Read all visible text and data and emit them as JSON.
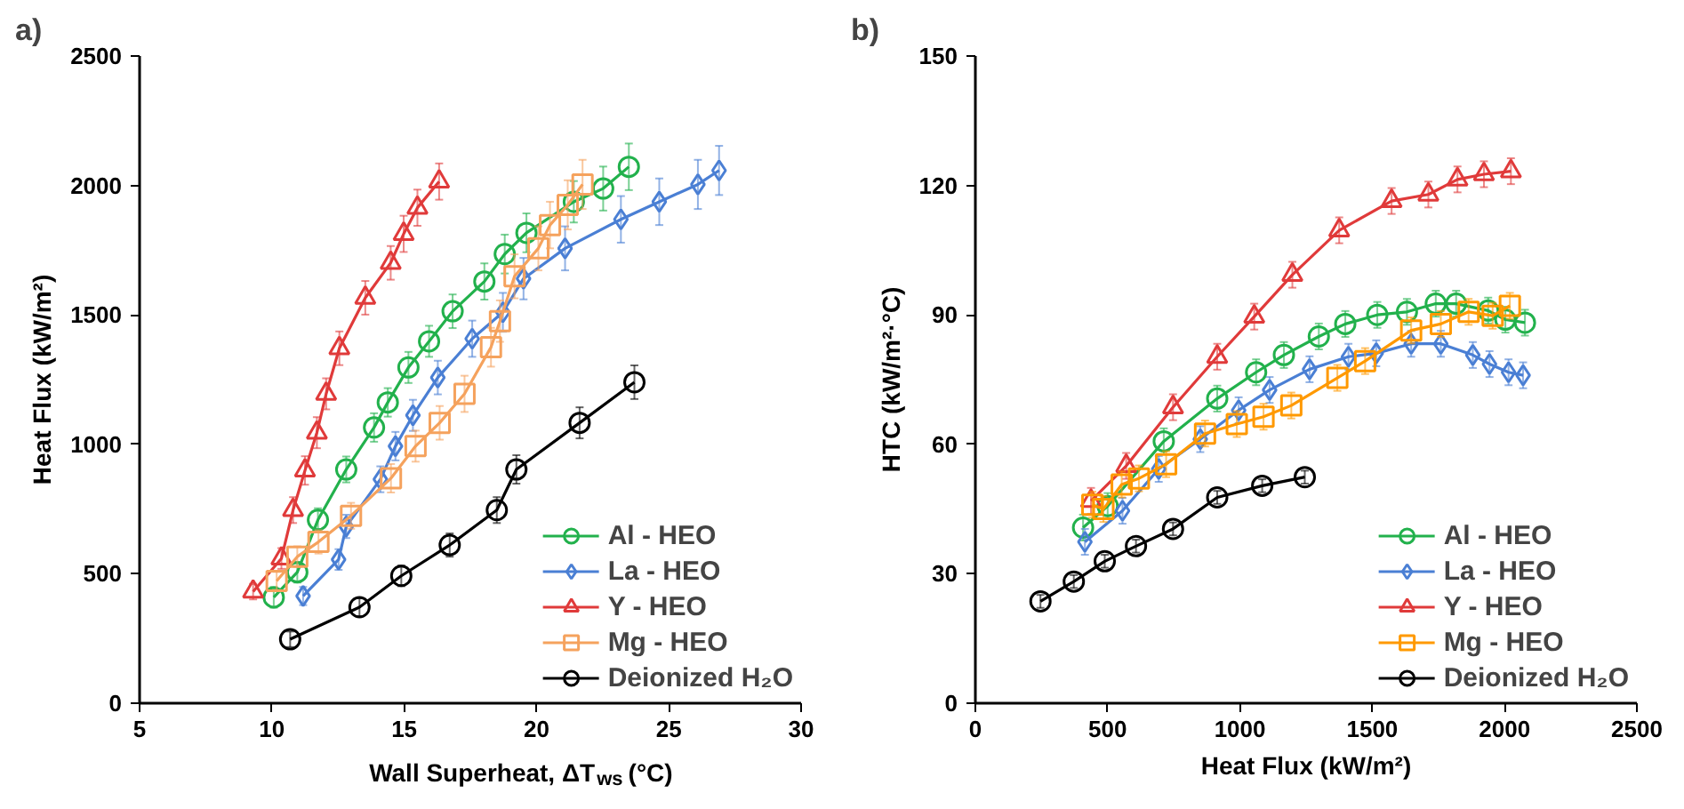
{
  "chart_data": [
    {
      "type": "line",
      "xlabel": "Wall Superheat, ΔT$_{ws}$ (°C)",
      "ylabel": "Heat Flux (kW/m²)",
      "annotations": [
        "a)"
      ],
      "xlim": [
        5,
        30
      ],
      "xticks": [
        5,
        10,
        15,
        20,
        25,
        30
      ],
      "ylim": [
        0,
        2500
      ],
      "yticks": [
        0,
        500,
        1000,
        1500,
        2000,
        2500
      ],
      "grid": false,
      "legend": "bottom right",
      "series": [
        {
          "name": "Al - HEO",
          "color": "#22b14c",
          "marker": "circle",
          "x": [
            10.07,
            10.96,
            11.74,
            12.81,
            13.86,
            14.38,
            15.16,
            15.94,
            16.83,
            18.03,
            18.8,
            19.62,
            21.41,
            22.52,
            23.49
          ],
          "values": [
            409,
            506,
            708,
            903,
            1065,
            1162,
            1297,
            1398,
            1514,
            1629,
            1735,
            1817,
            1937,
            1988,
            2072
          ],
          "errors": [
            40,
            40,
            45,
            50,
            55,
            55,
            60,
            60,
            65,
            70,
            75,
            75,
            80,
            85,
            90
          ]
        },
        {
          "name": "La - HEO",
          "color": "#4a7fd4",
          "marker": "diamond",
          "x": [
            11.18,
            12.52,
            12.81,
            14.1,
            14.67,
            15.33,
            16.27,
            17.57,
            18.73,
            19.51,
            21.08,
            23.19,
            24.64,
            26.1,
            26.9
          ],
          "values": [
            414,
            555,
            683,
            865,
            993,
            1112,
            1258,
            1408,
            1510,
            1640,
            1757,
            1869,
            1937,
            2004,
            2058
          ],
          "errors": [
            35,
            40,
            45,
            50,
            55,
            60,
            65,
            70,
            75,
            80,
            85,
            90,
            90,
            95,
            95
          ]
        },
        {
          "name": "Y - HEO",
          "color": "#e03a3a",
          "marker": "triangle",
          "x": [
            9.29,
            10.36,
            10.8,
            11.25,
            11.7,
            12.05,
            12.55,
            13.53,
            14.49,
            14.98,
            15.5,
            16.32
          ],
          "values": [
            431,
            559,
            746,
            899,
            1045,
            1195,
            1371,
            1566,
            1701,
            1813,
            1914,
            2015
          ],
          "errors": [
            30,
            40,
            50,
            55,
            60,
            60,
            65,
            65,
            65,
            70,
            70,
            70
          ]
        },
        {
          "name": "Mg - HEO",
          "color": "#f5a25d",
          "marker": "square",
          "x": [
            10.18,
            10.96,
            11.76,
            12.99,
            14.5,
            15.43,
            16.34,
            17.28,
            18.28,
            18.62,
            19.17,
            20.07,
            20.51,
            21.18,
            21.74
          ],
          "values": [
            472,
            566,
            623,
            724,
            869,
            993,
            1083,
            1195,
            1375,
            1476,
            1649,
            1757,
            1847,
            1925,
            2004
          ],
          "errors": [
            35,
            40,
            45,
            50,
            55,
            60,
            65,
            70,
            75,
            80,
            85,
            85,
            90,
            95,
            95
          ]
        },
        {
          "name": "Deionized H₂O",
          "color": "#000000",
          "marker": "circle",
          "x": [
            10.69,
            13.31,
            14.89,
            16.72,
            18.5,
            19.24,
            21.63,
            23.7
          ],
          "values": [
            247,
            371,
            492,
            611,
            746,
            903,
            1083,
            1240
          ],
          "errors": [
            30,
            35,
            40,
            45,
            50,
            55,
            60,
            65
          ]
        }
      ]
    },
    {
      "type": "line",
      "xlabel": "Heat Flux (kW/m²)",
      "ylabel": "HTC (kW/m²·°C)",
      "annotations": [
        "b)"
      ],
      "xlim": [
        0,
        2500
      ],
      "xticks": [
        0,
        500,
        1000,
        1500,
        2000,
        2500
      ],
      "ylim": [
        0,
        150
      ],
      "yticks": [
        0,
        30,
        60,
        90,
        120,
        150
      ],
      "grid": false,
      "legend": "bottom right",
      "series": [
        {
          "name": "Al - HEO",
          "color": "#22b14c",
          "marker": "circle",
          "x": [
            407,
            500,
            712,
            914,
            1061,
            1166,
            1298,
            1398,
            1519,
            1631,
            1740,
            1817,
            1938,
            2003,
            2077
          ],
          "values": [
            40.7,
            45.7,
            60.7,
            70.6,
            76.7,
            80.7,
            85,
            87.9,
            90,
            90.7,
            92.6,
            92.6,
            91,
            88.9,
            88.2
          ],
          "errors": [
            3,
            3,
            3,
            3,
            3,
            3,
            3,
            3,
            3,
            3,
            3,
            3,
            3,
            3,
            3
          ]
        },
        {
          "name": "La - HEO",
          "color": "#4a7fd4",
          "marker": "diamond",
          "x": [
            414,
            556,
            693,
            850,
            995,
            1112,
            1263,
            1410,
            1515,
            1647,
            1759,
            1880,
            1943,
            2015,
            2070
          ],
          "values": [
            37.4,
            44.6,
            54.3,
            61.2,
            67.9,
            72.6,
            77.4,
            80.3,
            81.1,
            83.3,
            83.3,
            80.7,
            78.6,
            76.7,
            76
          ],
          "errors": [
            3,
            3,
            3,
            3,
            3,
            3,
            3,
            3,
            3,
            3,
            3,
            3,
            3,
            3,
            3
          ]
        },
        {
          "name": "Y - HEO",
          "color": "#e03a3a",
          "marker": "triangle",
          "x": [
            437,
            570,
            747,
            914,
            1054,
            1198,
            1375,
            1573,
            1712,
            1822,
            1922,
            2024
          ],
          "values": [
            46.9,
            55,
            68.6,
            80.3,
            89.6,
            99.3,
            109.6,
            116.4,
            117.9,
            121.4,
            122.6,
            123.3
          ],
          "errors": [
            3,
            3,
            3,
            3,
            3,
            3,
            3,
            3,
            3,
            3,
            3,
            3
          ]
        },
        {
          "name": "Mg - HEO",
          "color": "#ff9900",
          "marker": "square",
          "x": [
            442,
            484,
            553,
            618,
            721,
            868,
            988,
            1089,
            1194,
            1368,
            1473,
            1647,
            1759,
            1864,
            1955,
            2020
          ],
          "values": [
            46,
            45,
            50.7,
            52.1,
            55.4,
            62.5,
            64.7,
            66.4,
            69,
            75.4,
            79.3,
            86.4,
            87.9,
            90.7,
            89.8,
            92.1
          ],
          "errors": [
            3,
            3,
            3,
            3,
            3,
            3,
            3,
            3,
            3,
            3,
            3,
            3,
            3,
            3,
            3,
            3
          ]
        },
        {
          "name": "Deionized H₂O",
          "color": "#000000",
          "marker": "circle",
          "x": [
            246,
            372,
            489,
            607,
            747,
            914,
            1084,
            1245
          ],
          "values": [
            23.6,
            28.2,
            32.9,
            36.4,
            40.4,
            47.7,
            50.4,
            52.4
          ],
          "errors": [
            1.5,
            1.5,
            1.5,
            1.5,
            1.5,
            1.5,
            1.5,
            1.5
          ]
        }
      ]
    }
  ]
}
